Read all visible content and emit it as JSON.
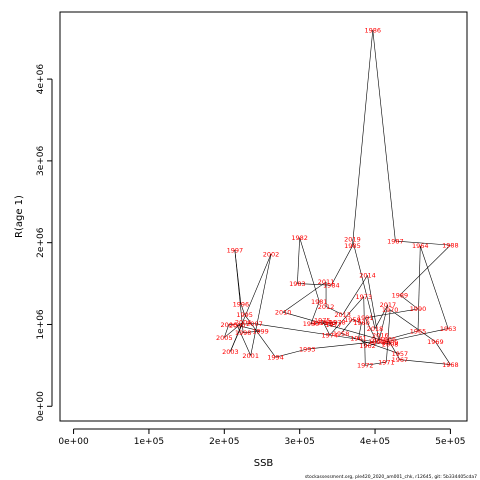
{
  "chart_data": {
    "type": "scatter",
    "connected": true,
    "xlabel": "SSB",
    "ylabel": "R(age 1)",
    "xlim": [
      -18000,
      522000
    ],
    "ylim": [
      -180000,
      4820000
    ],
    "xticks": [
      {
        "v": 0,
        "label": "0e+00"
      },
      {
        "v": 100000,
        "label": "1e+05"
      },
      {
        "v": 200000,
        "label": "2e+05"
      },
      {
        "v": 300000,
        "label": "3e+05"
      },
      {
        "v": 400000,
        "label": "4e+05"
      },
      {
        "v": 500000,
        "label": "5e+05"
      }
    ],
    "yticks": [
      {
        "v": 0,
        "label": "0e+00"
      },
      {
        "v": 1000000,
        "label": "1e+06"
      },
      {
        "v": 2000000,
        "label": "2e+06"
      },
      {
        "v": 3000000,
        "label": "3e+06"
      },
      {
        "v": 4000000,
        "label": "4e+06"
      }
    ],
    "points": [
      {
        "year": "1957",
        "x": 433000,
        "y": 640000
      },
      {
        "year": "1958",
        "x": 355000,
        "y": 890000
      },
      {
        "year": "1959",
        "x": 370000,
        "y": 1060000
      },
      {
        "year": "1960",
        "x": 382000,
        "y": 1020000
      },
      {
        "year": "1961",
        "x": 378000,
        "y": 830000
      },
      {
        "year": "1962",
        "x": 390000,
        "y": 740000
      },
      {
        "year": "1963",
        "x": 497000,
        "y": 950000
      },
      {
        "year": "1964",
        "x": 460000,
        "y": 1960000
      },
      {
        "year": "1965",
        "x": 457000,
        "y": 920000
      },
      {
        "year": "1966",
        "x": 417000,
        "y": 820000
      },
      {
        "year": "1967",
        "x": 433000,
        "y": 570000
      },
      {
        "year": "1968",
        "x": 500000,
        "y": 510000
      },
      {
        "year": "1969",
        "x": 480000,
        "y": 790000
      },
      {
        "year": "1970",
        "x": 420000,
        "y": 1180000
      },
      {
        "year": "1971",
        "x": 415000,
        "y": 540000
      },
      {
        "year": "1972",
        "x": 387000,
        "y": 500000
      },
      {
        "year": "1973",
        "x": 385000,
        "y": 1340000
      },
      {
        "year": "1974",
        "x": 340000,
        "y": 870000
      },
      {
        "year": "1975",
        "x": 330000,
        "y": 1050000
      },
      {
        "year": "1976",
        "x": 337000,
        "y": 1020000
      },
      {
        "year": "1977",
        "x": 345000,
        "y": 1000000
      },
      {
        "year": "1978",
        "x": 350000,
        "y": 1030000
      },
      {
        "year": "1979",
        "x": 328000,
        "y": 1020000
      },
      {
        "year": "1980",
        "x": 315000,
        "y": 1010000
      },
      {
        "year": "1981",
        "x": 326000,
        "y": 1280000
      },
      {
        "year": "1982",
        "x": 300000,
        "y": 2060000
      },
      {
        "year": "1983",
        "x": 297000,
        "y": 1500000
      },
      {
        "year": "1984",
        "x": 342000,
        "y": 1480000
      },
      {
        "year": "1985",
        "x": 370000,
        "y": 1960000
      },
      {
        "year": "1986",
        "x": 397000,
        "y": 4600000
      },
      {
        "year": "1987",
        "x": 427000,
        "y": 2020000
      },
      {
        "year": "1988",
        "x": 500000,
        "y": 1970000
      },
      {
        "year": "1989",
        "x": 433000,
        "y": 1360000
      },
      {
        "year": "1990",
        "x": 457000,
        "y": 1190000
      },
      {
        "year": "1991",
        "x": 387000,
        "y": 1080000
      },
      {
        "year": "1992",
        "x": 402000,
        "y": 790000
      },
      {
        "year": "1993",
        "x": 310000,
        "y": 700000
      },
      {
        "year": "1994",
        "x": 268000,
        "y": 600000
      },
      {
        "year": "1995",
        "x": 227000,
        "y": 1120000
      },
      {
        "year": "1996",
        "x": 222000,
        "y": 1250000
      },
      {
        "year": "1997",
        "x": 214000,
        "y": 1910000
      },
      {
        "year": "1998",
        "x": 225000,
        "y": 900000
      },
      {
        "year": "1999",
        "x": 248000,
        "y": 920000
      },
      {
        "year": "2000",
        "x": 217000,
        "y": 990000
      },
      {
        "year": "2001",
        "x": 235000,
        "y": 620000
      },
      {
        "year": "2002",
        "x": 262000,
        "y": 1860000
      },
      {
        "year": "2003",
        "x": 208000,
        "y": 670000
      },
      {
        "year": "2004",
        "x": 225000,
        "y": 1030000
      },
      {
        "year": "2005",
        "x": 200000,
        "y": 840000
      },
      {
        "year": "2006",
        "x": 206000,
        "y": 1000000
      },
      {
        "year": "2007",
        "x": 240000,
        "y": 1010000
      },
      {
        "year": "2008",
        "x": 420000,
        "y": 760000
      },
      {
        "year": "2009",
        "x": 420000,
        "y": 780000
      },
      {
        "year": "2010",
        "x": 278000,
        "y": 1150000
      },
      {
        "year": "2011",
        "x": 335000,
        "y": 1520000
      },
      {
        "year": "2012",
        "x": 335000,
        "y": 1220000
      },
      {
        "year": "2013",
        "x": 357000,
        "y": 1120000
      },
      {
        "year": "2014",
        "x": 390000,
        "y": 1600000
      },
      {
        "year": "2015",
        "x": 405000,
        "y": 800000
      },
      {
        "year": "2016",
        "x": 407000,
        "y": 870000
      },
      {
        "year": "2017",
        "x": 417000,
        "y": 1240000
      },
      {
        "year": "2018",
        "x": 400000,
        "y": 950000
      },
      {
        "year": "2019",
        "x": 370000,
        "y": 2040000
      }
    ]
  },
  "footer": {
    "text": "stockassessment.org, ple420_2020_am001_chk, r12645, git: 5b334405cda7"
  }
}
